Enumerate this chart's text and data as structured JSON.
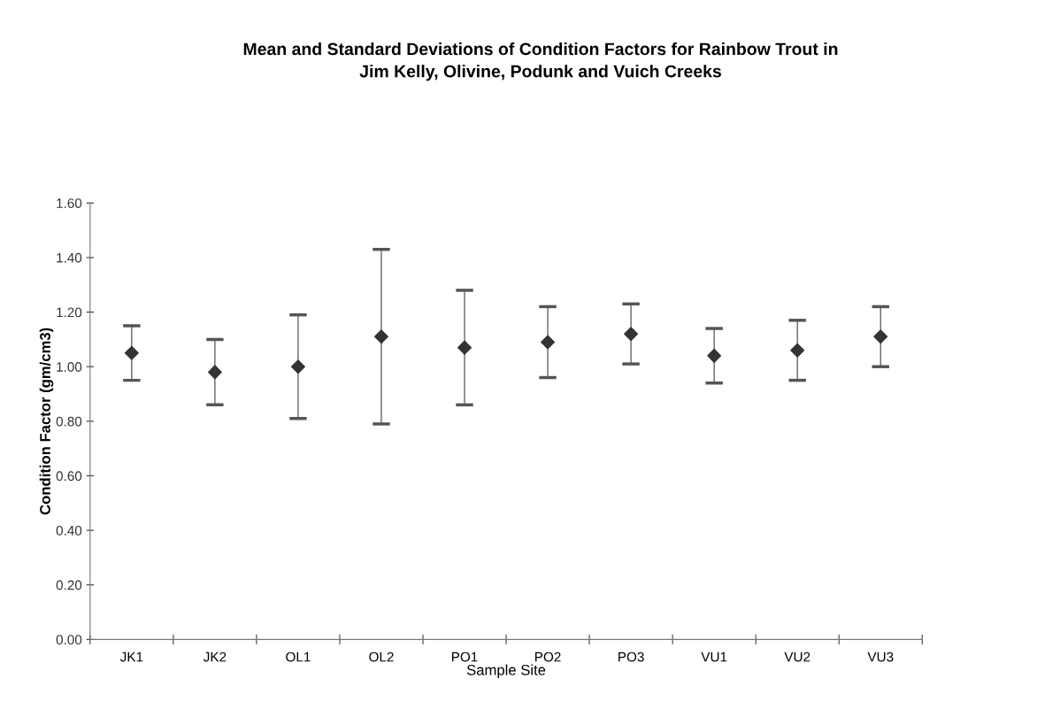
{
  "chart_data": {
    "type": "scatter",
    "title": "Mean and Standard Deviations of Condition Factors for Rainbow Trout in\nJim Kelly, Olivine, Podunk and Vuich Creeks",
    "xlabel": "Sample Site",
    "ylabel": "Condition Factor (gm/cm3)",
    "categories": [
      "JK1",
      "JK2",
      "OL1",
      "OL2",
      "PO1",
      "PO2",
      "PO3",
      "VU1",
      "VU2",
      "VU3"
    ],
    "values": [
      1.05,
      0.98,
      1.0,
      1.11,
      1.07,
      1.09,
      1.12,
      1.04,
      1.06,
      1.11
    ],
    "errors": [
      0.1,
      0.12,
      0.19,
      0.32,
      0.21,
      0.13,
      0.11,
      0.1,
      0.11,
      0.11
    ],
    "color": "#333333",
    "marker": "diamond",
    "ylim": [
      0,
      1.6
    ],
    "yticks": [
      {
        "value": 0,
        "label": "0.00"
      },
      {
        "value": 0.2,
        "label": "0.20"
      },
      {
        "value": 0.4,
        "label": "0.40"
      },
      {
        "value": 0.6,
        "label": "0.60"
      },
      {
        "value": 0.8,
        "label": "0.80"
      },
      {
        "value": 1.0,
        "label": "1.00"
      },
      {
        "value": 1.2,
        "label": "1.20"
      },
      {
        "value": 1.4,
        "label": "1.40"
      },
      {
        "value": 1.6,
        "label": "1.60"
      }
    ],
    "grid": false,
    "legend": false
  }
}
